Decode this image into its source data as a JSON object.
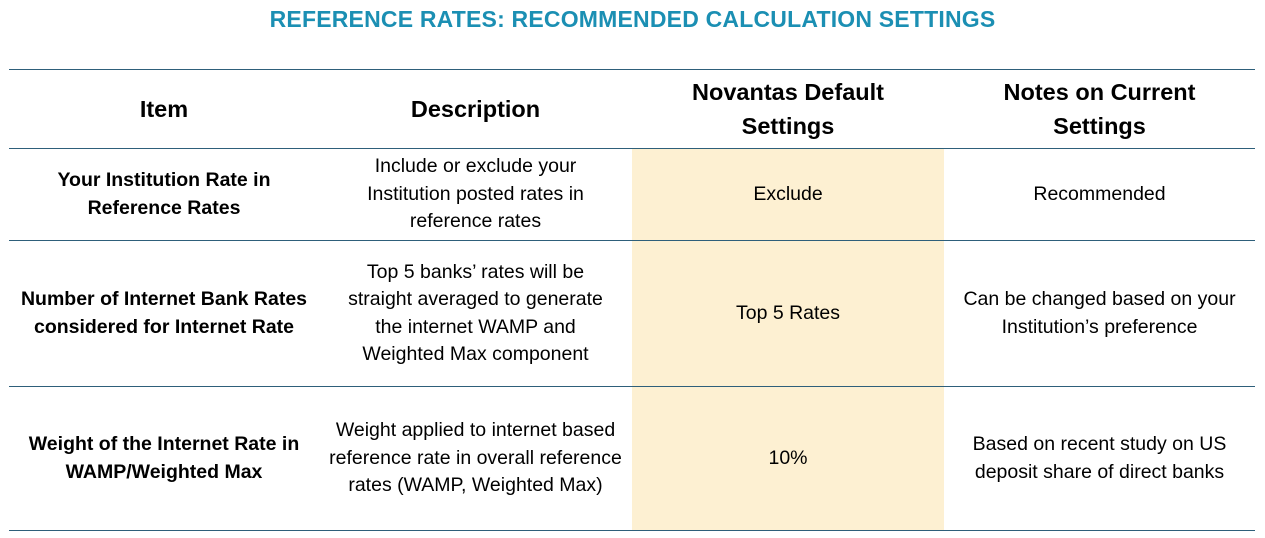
{
  "title": "REFERENCE RATES: RECOMMENDED CALCULATION SETTINGS",
  "columns": [
    "Item",
    "Description",
    "Novantas Default Settings",
    "Notes on Current Settings"
  ],
  "rows": [
    {
      "item": "Your Institution Rate in Reference Rates",
      "description": "Include or exclude your Institution posted rates in reference rates",
      "default": "Exclude",
      "notes": "Recommended"
    },
    {
      "item": "Number of Internet Bank Rates considered for Internet Rate",
      "description": "Top 5 banks’ rates will be straight averaged to generate the internet WAMP and Weighted Max component",
      "default": "Top 5 Rates",
      "notes": "Can be changed based on your Institution’s preference"
    },
    {
      "item": "Weight of the Internet Rate in WAMP/Weighted Max",
      "description": "Weight applied to internet based reference rate in overall reference rates (WAMP, Weighted Max)",
      "default": "10%",
      "notes": "Based on recent study on US deposit share of direct banks"
    }
  ],
  "colors": {
    "title": "#1b8fb3",
    "highlight": "#fdf0d2",
    "rule": "#2e5f7a"
  }
}
